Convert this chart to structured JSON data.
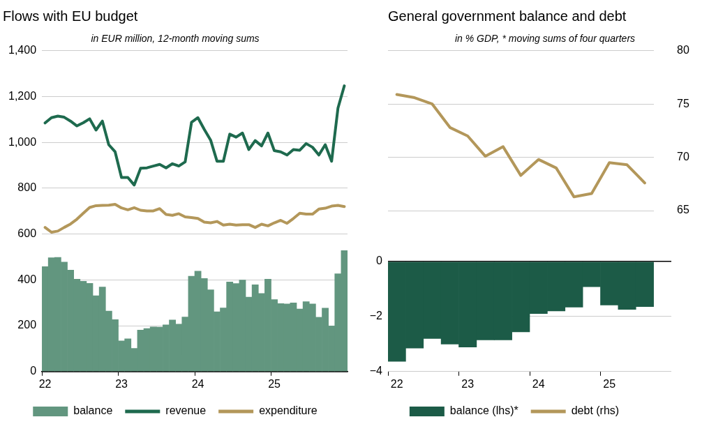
{
  "chart_data": [
    {
      "type": "bar",
      "title": "Flows with EU budget",
      "subtitle": "in EUR million, 12-month moving sums",
      "categories": [
        "22",
        null,
        null,
        null,
        null,
        null,
        null,
        null,
        null,
        null,
        null,
        null,
        "23",
        null,
        null,
        null,
        null,
        null,
        null,
        null,
        null,
        null,
        null,
        null,
        "24",
        null,
        null,
        null,
        null,
        null,
        null,
        null,
        null,
        null,
        null,
        null,
        "25",
        null,
        null,
        null,
        null,
        null,
        null,
        null,
        null,
        null,
        null,
        null
      ],
      "series": [
        {
          "name": "balance",
          "color": "#62967f",
          "values": [
            458,
            497,
            498,
            478,
            443,
            403,
            394,
            385,
            331,
            369,
            264,
            227,
            134,
            143,
            101,
            181,
            188,
            195,
            194,
            204,
            225,
            207,
            238,
            416,
            438,
            406,
            357,
            261,
            278,
            391,
            384,
            399,
            325,
            379,
            341,
            403,
            314,
            297,
            295,
            300,
            273,
            305,
            295,
            237,
            277,
            199,
            427,
            528
          ]
        },
        {
          "name": "revenue",
          "type": "line",
          "color": "#1e6a4e",
          "values": [
            1085,
            1108,
            1115,
            1110,
            1093,
            1072,
            1086,
            1103,
            1054,
            1093,
            990,
            959,
            847,
            847,
            814,
            887,
            889,
            897,
            904,
            889,
            907,
            897,
            915,
            1088,
            1108,
            1057,
            1010,
            918,
            918,
            1036,
            1023,
            1041,
            969,
            1008,
            985,
            1041,
            964,
            959,
            945,
            969,
            966,
            995,
            979,
            945,
            990,
            918,
            1150,
            1247
          ]
        },
        {
          "name": "expenditure",
          "type": "line",
          "color": "#b3975a",
          "values": [
            629,
            608,
            613,
            629,
            644,
            665,
            691,
            716,
            724,
            725,
            726,
            730,
            714,
            706,
            715,
            704,
            701,
            701,
            711,
            686,
            682,
            689,
            675,
            672,
            668,
            652,
            649,
            655,
            639,
            643,
            639,
            641,
            641,
            629,
            643,
            636,
            649,
            660,
            647,
            668,
            691,
            687,
            687,
            709,
            713,
            722,
            725,
            720
          ]
        }
      ],
      "ylim": [
        0,
        1400
      ],
      "yticks": [
        0,
        200,
        400,
        600,
        800,
        {
          "value": 1000,
          "label": "1,000"
        },
        {
          "value": 1200,
          "label": "1,200"
        },
        {
          "value": 1400,
          "label": "1,400"
        }
      ],
      "grid": "y",
      "legend": "bottom",
      "marker": "none",
      "line_style": "solid"
    },
    {
      "type": "line",
      "title": "General government balance and debt",
      "subtitle": "in % GDP, * moving sums of four quarters",
      "categories": [
        null,
        null,
        null,
        null,
        null,
        null,
        null,
        null,
        null,
        null,
        null,
        null,
        null,
        null,
        null
      ],
      "series": [
        {
          "name": "debt (rhs)",
          "color": "#b3975a",
          "values": [
            75.9,
            75.6,
            75.0,
            72.8,
            72.0,
            70.1,
            71.0,
            68.3,
            69.8,
            69.0,
            66.3,
            66.6,
            69.5,
            69.3,
            67.6
          ]
        }
      ],
      "ylim": [
        65,
        80
      ],
      "yticks": [
        65,
        70,
        75,
        80
      ],
      "grid": "y",
      "legend": "bottom",
      "marker": "none",
      "line_style": "solid"
    },
    {
      "type": "bar",
      "categories": [
        "22",
        null,
        null,
        null,
        "23",
        null,
        null,
        null,
        "24",
        null,
        null,
        null,
        "25",
        null,
        null,
        null
      ],
      "series": [
        {
          "name": "balance (lhs)*",
          "color": "#1c5b47",
          "values": [
            -3.63,
            -3.15,
            -2.8,
            -3.0,
            -3.11,
            -2.85,
            -2.85,
            -2.56,
            -1.89,
            -1.8,
            -1.66,
            -0.92,
            -1.58,
            -1.74,
            -1.64,
            null
          ]
        }
      ],
      "ylim": [
        -4,
        0
      ],
      "yticks": [
        {
          "value": -4,
          "label": "−4"
        },
        {
          "value": -2,
          "label": "−2"
        },
        0
      ],
      "grid": "y",
      "legend": "bottom"
    }
  ]
}
